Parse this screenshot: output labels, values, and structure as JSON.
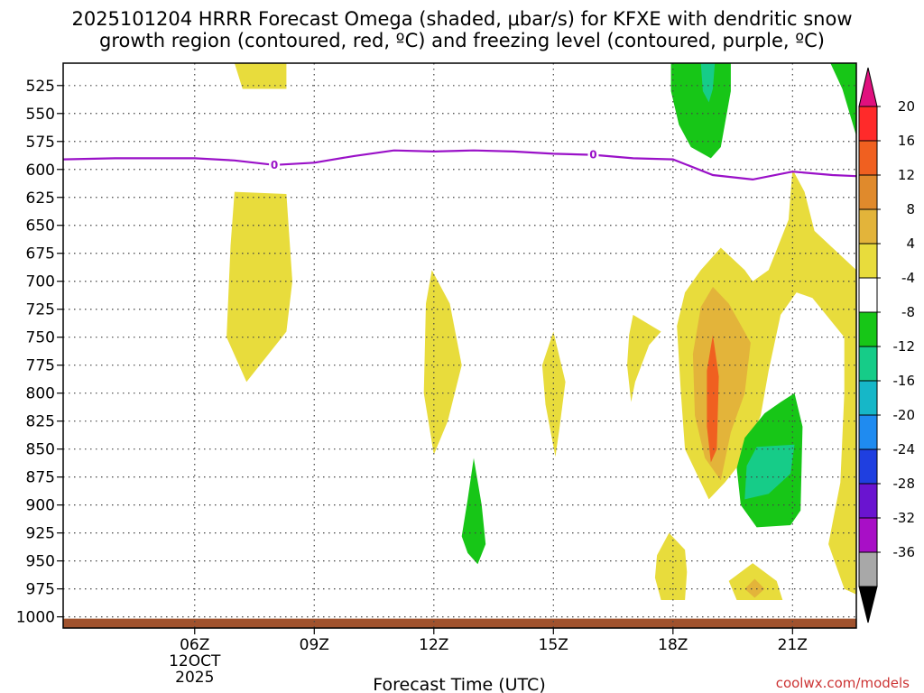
{
  "chart_data": {
    "type": "heatmap",
    "title_line1": "2025101204 HRRR Forecast Omega (shaded, μbar/s) for KFXE with dendritic snow",
    "title_line2": "growth region (contoured, red, ºC) and freezing level (contoured, purple, ºC)",
    "xlabel": "Forecast Time (UTC)",
    "ylabel": "",
    "x_unit": "hour UTC on 12 Oct 2025",
    "xlim": [
      2.7,
      22.6
    ],
    "ylim": [
      1010,
      505
    ],
    "x_ticks": [
      {
        "x": 6,
        "label": "06Z",
        "sub1": "12OCT",
        "sub2": "2025"
      },
      {
        "x": 9,
        "label": "09Z",
        "sub1": "",
        "sub2": ""
      },
      {
        "x": 12,
        "label": "12Z",
        "sub1": "",
        "sub2": ""
      },
      {
        "x": 15,
        "label": "15Z",
        "sub1": "",
        "sub2": ""
      },
      {
        "x": 18,
        "label": "18Z",
        "sub1": "",
        "sub2": ""
      },
      {
        "x": 21,
        "label": "21Z",
        "sub1": "",
        "sub2": ""
      }
    ],
    "y_ticks": [
      525,
      550,
      575,
      600,
      625,
      650,
      675,
      700,
      725,
      750,
      775,
      800,
      825,
      850,
      875,
      900,
      925,
      950,
      975,
      1000
    ],
    "colorbar": {
      "labels": [
        "20",
        "16",
        "12",
        "8",
        "4",
        "-4",
        "-8",
        "-12",
        "-16",
        "-20",
        "-24",
        "-28",
        "-32",
        "-36"
      ],
      "colors": [
        "#ff2a2a",
        "#f06020",
        "#e08a2c",
        "#e3b43a",
        "#e8dc3c",
        "#ffffff",
        "#17c617",
        "#16cc88",
        "#16b7c8",
        "#1f8bf0",
        "#1f3fe0",
        "#6a14d0",
        "#a80fc6",
        "#a8a8a8"
      ],
      "top_color": "#e0107e",
      "bottom_color": "#000000"
    },
    "freezing_level": {
      "label": "0",
      "label_positions": [
        [
          8,
          596
        ],
        [
          16,
          587
        ]
      ],
      "points": [
        [
          2.7,
          591
        ],
        [
          4,
          590
        ],
        [
          6,
          590
        ],
        [
          7,
          592
        ],
        [
          8,
          596
        ],
        [
          9,
          594
        ],
        [
          10,
          588
        ],
        [
          11,
          583
        ],
        [
          12,
          584
        ],
        [
          13,
          583
        ],
        [
          14,
          584
        ],
        [
          15,
          586
        ],
        [
          16,
          587
        ],
        [
          17,
          590
        ],
        [
          18,
          591
        ],
        [
          19,
          605
        ],
        [
          20,
          609
        ],
        [
          21,
          602
        ],
        [
          22,
          605
        ],
        [
          22.6,
          606
        ]
      ]
    },
    "omega_regions": [
      {
        "value_range": "4 to 8",
        "color": "#e8dc3c",
        "points": [
          [
            7.0,
            505
          ],
          [
            8.3,
            505
          ],
          [
            8.3,
            528
          ],
          [
            7.2,
            528
          ]
        ]
      },
      {
        "value_range": "4 to 8",
        "color": "#e8dc3c",
        "points": [
          [
            7.0,
            620
          ],
          [
            8.3,
            622
          ],
          [
            8.45,
            700
          ],
          [
            8.3,
            745
          ],
          [
            7.3,
            790
          ],
          [
            6.8,
            750
          ],
          [
            6.9,
            668
          ]
        ]
      },
      {
        "value_range": "4 to 8",
        "color": "#e8dc3c",
        "points": [
          [
            11.95,
            690
          ],
          [
            12.4,
            720
          ],
          [
            12.7,
            775
          ],
          [
            12.35,
            825
          ],
          [
            12.0,
            855
          ],
          [
            11.75,
            800
          ],
          [
            11.8,
            720
          ]
        ]
      },
      {
        "value_range": "4 to 8",
        "color": "#e8dc3c",
        "points": [
          [
            15.0,
            745
          ],
          [
            15.3,
            790
          ],
          [
            15.15,
            832
          ],
          [
            15.05,
            857
          ],
          [
            14.8,
            810
          ],
          [
            14.72,
            775
          ]
        ]
      },
      {
        "value_range": "4 to 8",
        "color": "#e8dc3c",
        "points": [
          [
            17.0,
            730
          ],
          [
            17.7,
            745
          ],
          [
            17.4,
            757
          ],
          [
            17.05,
            790
          ],
          [
            16.95,
            808
          ],
          [
            16.85,
            775
          ],
          [
            16.9,
            748
          ]
        ]
      },
      {
        "value_range": "4 to 8",
        "color": "#e8dc3c",
        "points": [
          [
            19.2,
            670
          ],
          [
            19.8,
            690
          ],
          [
            20.0,
            700
          ],
          [
            20.4,
            690
          ],
          [
            20.9,
            645
          ],
          [
            21.0,
            600
          ],
          [
            21.3,
            620
          ],
          [
            21.55,
            655
          ],
          [
            22.6,
            690
          ],
          [
            22.6,
            980
          ],
          [
            22.3,
            975
          ],
          [
            21.9,
            935
          ],
          [
            22.2,
            880
          ],
          [
            22.3,
            800
          ],
          [
            22.3,
            750
          ],
          [
            21.5,
            715
          ],
          [
            21.1,
            710
          ],
          [
            20.7,
            730
          ],
          [
            20.4,
            780
          ],
          [
            20.2,
            820
          ],
          [
            19.9,
            845
          ],
          [
            19.7,
            862
          ],
          [
            19.3,
            880
          ],
          [
            18.9,
            895
          ],
          [
            18.3,
            850
          ],
          [
            18.2,
            800
          ],
          [
            18.1,
            740
          ],
          [
            18.3,
            710
          ],
          [
            18.7,
            690
          ]
        ]
      },
      {
        "value_range": "8 to 12",
        "color": "#e3b43a",
        "points": [
          [
            19.0,
            705
          ],
          [
            19.4,
            720
          ],
          [
            19.95,
            755
          ],
          [
            19.8,
            800
          ],
          [
            19.45,
            835
          ],
          [
            19.2,
            878
          ],
          [
            18.8,
            858
          ],
          [
            18.55,
            820
          ],
          [
            18.5,
            765
          ],
          [
            18.7,
            723
          ]
        ]
      },
      {
        "value_range": "12 to 16",
        "color": "#f06020",
        "points": [
          [
            19.0,
            748
          ],
          [
            19.15,
            785
          ],
          [
            19.1,
            850
          ],
          [
            18.95,
            862
          ],
          [
            18.85,
            830
          ],
          [
            18.85,
            780
          ]
        ]
      },
      {
        "value_range": "4 to 8",
        "color": "#e8dc3c",
        "points": [
          [
            17.9,
            925
          ],
          [
            18.3,
            940
          ],
          [
            18.35,
            960
          ],
          [
            18.3,
            985
          ],
          [
            17.7,
            985
          ],
          [
            17.55,
            965
          ],
          [
            17.6,
            945
          ]
        ]
      },
      {
        "value_range": "4 to 8",
        "color": "#e8dc3c",
        "points": [
          [
            20.0,
            952
          ],
          [
            20.6,
            968
          ],
          [
            20.75,
            985
          ],
          [
            19.6,
            985
          ],
          [
            19.4,
            968
          ]
        ]
      },
      {
        "value_range": "8 to 12",
        "color": "#e3b43a",
        "points": [
          [
            20.05,
            966
          ],
          [
            20.3,
            975
          ],
          [
            20.05,
            983
          ],
          [
            19.8,
            975
          ]
        ]
      },
      {
        "value_range": "-8 to -4",
        "color": "#17c617",
        "points": [
          [
            17.95,
            505
          ],
          [
            19.45,
            505
          ],
          [
            19.45,
            530
          ],
          [
            19.2,
            580
          ],
          [
            18.95,
            590
          ],
          [
            18.45,
            580
          ],
          [
            18.15,
            560
          ],
          [
            17.95,
            530
          ]
        ]
      },
      {
        "value_range": "-12 to -8",
        "color": "#16cc88",
        "points": [
          [
            18.7,
            505
          ],
          [
            19.05,
            505
          ],
          [
            19.0,
            528
          ],
          [
            18.9,
            540
          ],
          [
            18.75,
            530
          ]
        ]
      },
      {
        "value_range": "-8 to -4",
        "color": "#17c617",
        "points": [
          [
            22.6,
            505
          ],
          [
            22.6,
            570
          ],
          [
            22.25,
            528
          ],
          [
            21.95,
            505
          ]
        ]
      },
      {
        "value_range": "-8 to -4",
        "color": "#17c617",
        "points": [
          [
            21.05,
            800
          ],
          [
            21.25,
            830
          ],
          [
            21.2,
            905
          ],
          [
            20.95,
            918
          ],
          [
            20.1,
            920
          ],
          [
            19.7,
            900
          ],
          [
            19.6,
            867
          ],
          [
            19.8,
            840
          ],
          [
            20.3,
            818
          ],
          [
            20.7,
            808
          ]
        ]
      },
      {
        "value_range": "-12 to -8",
        "color": "#16cc88",
        "points": [
          [
            20.1,
            848
          ],
          [
            21.05,
            846
          ],
          [
            20.95,
            872
          ],
          [
            20.4,
            890
          ],
          [
            19.8,
            895
          ],
          [
            19.85,
            865
          ]
        ]
      },
      {
        "value_range": "-8 to -4",
        "color": "#17c617",
        "points": [
          [
            13.0,
            858
          ],
          [
            13.2,
            900
          ],
          [
            13.3,
            935
          ],
          [
            13.1,
            953
          ],
          [
            12.85,
            943
          ],
          [
            12.7,
            928
          ],
          [
            12.85,
            895
          ]
        ]
      }
    ],
    "ground_band": {
      "from": 1000,
      "to": 1010,
      "color": "#a0522d"
    },
    "credit": "coolwx.com/models"
  }
}
